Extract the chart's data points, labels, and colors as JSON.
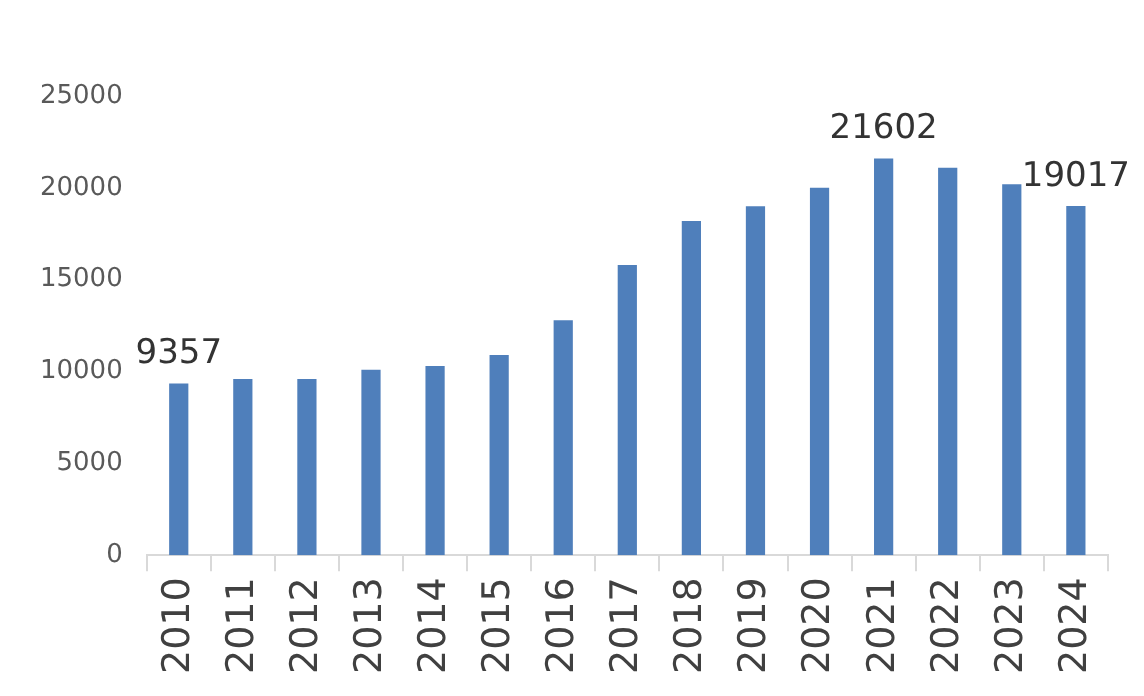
{
  "chart_data": {
    "type": "bar",
    "categories": [
      "2010",
      "2011",
      "2012",
      "2013",
      "2014",
      "2015",
      "2016",
      "2017",
      "2018",
      "2019",
      "2020",
      "2021",
      "2022",
      "2023",
      "2024"
    ],
    "values": [
      9357,
      9600,
      9600,
      10100,
      10300,
      10900,
      12800,
      15800,
      18200,
      19000,
      20000,
      21602,
      21100,
      20200,
      19017
    ],
    "value_labels": [
      "9357",
      null,
      null,
      null,
      null,
      null,
      null,
      null,
      null,
      null,
      null,
      "21602",
      null,
      null,
      "19017"
    ],
    "color": "#4f7fbb",
    "ylim": [
      0,
      25000
    ],
    "yticks": [
      0,
      5000,
      10000,
      15000,
      20000,
      25000
    ],
    "grid": false,
    "legend": false
  }
}
